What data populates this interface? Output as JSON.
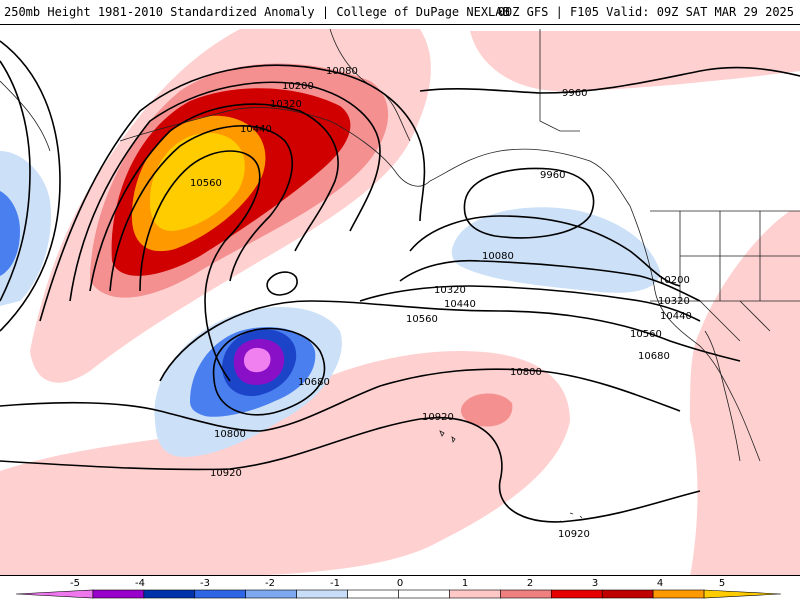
{
  "header": {
    "title": "250mb Height 1981-2010 Standardized Anomaly | College of DuPage NEXLAB",
    "valid": "00Z GFS | F105 Valid: 09Z SAT MAR 29 2025"
  },
  "contour_labels": [
    {
      "id": "c10080a",
      "text": "10080"
    },
    {
      "id": "c10200a",
      "text": "10200"
    },
    {
      "id": "c10320a",
      "text": "10320"
    },
    {
      "id": "c10440a",
      "text": "10440"
    },
    {
      "id": "c10560a",
      "text": "10560"
    },
    {
      "id": "c9960a",
      "text": "9960"
    },
    {
      "id": "c9960b",
      "text": "9960"
    },
    {
      "id": "c10080b",
      "text": "10080"
    },
    {
      "id": "c10200b",
      "text": "10200"
    },
    {
      "id": "c10320b",
      "text": "10320"
    },
    {
      "id": "c10440b",
      "text": "10440"
    },
    {
      "id": "c10320c",
      "text": "10320"
    },
    {
      "id": "c10440c",
      "text": "10440"
    },
    {
      "id": "c10560b",
      "text": "10560"
    },
    {
      "id": "c10560c",
      "text": "10560"
    },
    {
      "id": "c10680a",
      "text": "10680"
    },
    {
      "id": "c10680b",
      "text": "10680"
    },
    {
      "id": "c10800a",
      "text": "10800"
    },
    {
      "id": "c10800b",
      "text": "10800"
    },
    {
      "id": "c10920a",
      "text": "10920"
    },
    {
      "id": "c10920b",
      "text": "10920"
    },
    {
      "id": "c10920c",
      "text": "10920"
    }
  ],
  "legend": {
    "ticks": [
      "-5",
      "-4",
      "-3",
      "-2",
      "-1",
      "0",
      "1",
      "2",
      "3",
      "4",
      "5"
    ],
    "colors": [
      "#ee77ee",
      "#9900cc",
      "#0033aa",
      "#2e66e6",
      "#7ea8f0",
      "#c8def8",
      "#ffffff",
      "#ffffff",
      "#ffc8c8",
      "#f08080",
      "#e60000",
      "#c00000",
      "#ff9900",
      "#ffcc00"
    ]
  },
  "colors": {
    "pos1": "#ffd0d0",
    "pos2": "#f49090",
    "pos3": "#d00000",
    "pos4": "#ff9900",
    "pos5": "#ffcc00",
    "neg1": "#cce0f8",
    "neg2": "#4a7ff0",
    "neg3": "#1c44c8",
    "neg4": "#8a10c8",
    "neg5": "#f080f0"
  }
}
